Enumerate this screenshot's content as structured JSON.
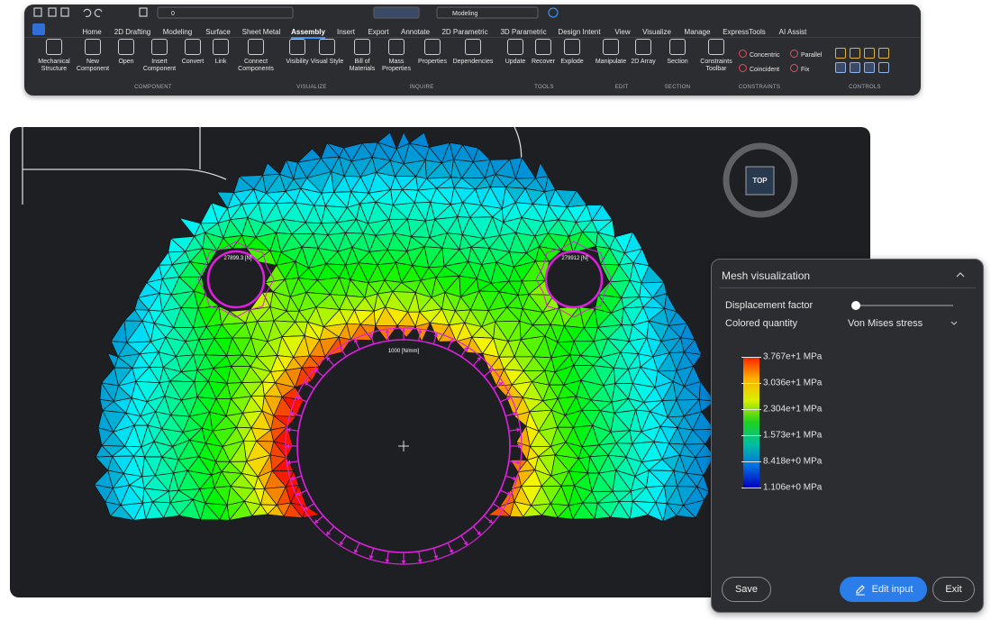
{
  "toolbar": {
    "layer": "0",
    "workspace": "Modeling"
  },
  "ribbon": {
    "tabs": [
      "Home",
      "2D Drafting",
      "Modeling",
      "Surface",
      "Sheet Metal",
      "Assembly",
      "Insert",
      "Export",
      "Annotate",
      "2D Parametric",
      "3D Parametric",
      "Design Intent",
      "View",
      "Visualize",
      "Manage",
      "ExpressTools",
      "AI Assist"
    ],
    "buttons": [
      "Mechanical Structure",
      "New Component",
      "Open",
      "Insert Component",
      "Convert",
      "Link",
      "Connect Components",
      "Visibility",
      "Visual Style",
      "Bill of Materials",
      "Mass Properties",
      "Properties",
      "Dependencies",
      "Update",
      "Recover",
      "Explode",
      "Manipulate",
      "2D Array",
      "Section",
      "Constraints Toolbar"
    ],
    "small_buttons": [
      "Concentric",
      "Parallel",
      "Coincident",
      "Fix"
    ],
    "groups": [
      "COMPONENT",
      "VISUALIZE",
      "INQUIRE",
      "TOOLS",
      "EDIT",
      "SECTION",
      "CONSTRAINTS",
      "CONTROLS"
    ]
  },
  "viewport": {
    "view_cube": "TOP",
    "annotations": [
      "27899.3 [N]",
      "279912 [N]",
      "1000 [N/mm]"
    ]
  },
  "panel": {
    "title": "Mesh visualization",
    "displacement_label": "Displacement factor",
    "quantity_label": "Colored quantity",
    "quantity_value": "Von Mises stress",
    "legend_labels": [
      "3.767e+1 MPa",
      "3.036e+1 MPa",
      "2.304e+1 MPa",
      "1.573e+1 MPa",
      "8.418e+0 MPa",
      "1.106e+0 MPa"
    ],
    "buttons": {
      "save": "Save",
      "edit": "Edit input",
      "exit": "Exit"
    }
  }
}
